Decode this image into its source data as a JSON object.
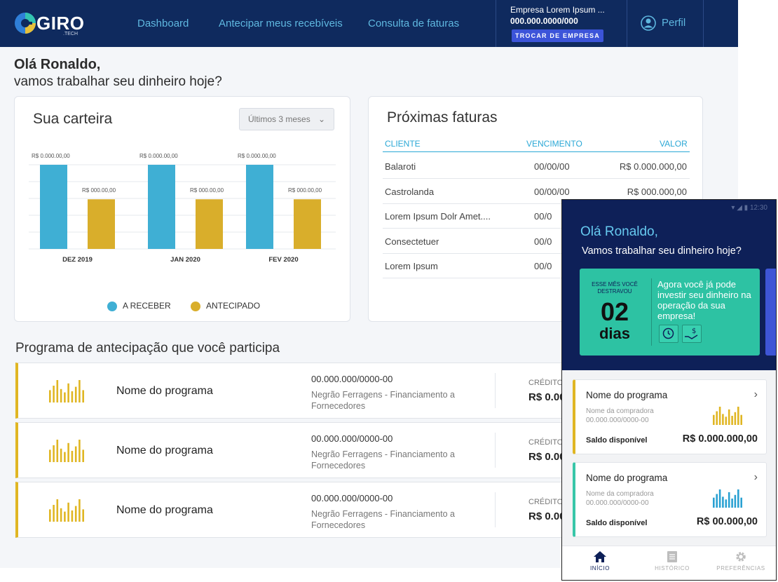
{
  "brand": {
    "name": "GIRO",
    "sub": ".TECH"
  },
  "nav": [
    "Dashboard",
    "Antecipar meus recebíveis",
    "Consulta de faturas"
  ],
  "company": {
    "name": "Empresa Lorem Ipsum ...",
    "cnpj": "000.000.0000/000",
    "switch_label": "TROCAR DE EMPRESA"
  },
  "profile_label": "Perfil",
  "greeting": {
    "line1": "Olá Ronaldo,",
    "line2": "vamos trabalhar seu dinheiro hoje?"
  },
  "wallet": {
    "title": "Sua carteira",
    "period": "Últimos 3 meses",
    "legend": [
      "A RECEBER",
      "ANTECIPADO"
    ]
  },
  "chart_data": {
    "type": "bar",
    "categories": [
      "DEZ 2019",
      "JAN 2020",
      "FEV 2020"
    ],
    "series": [
      {
        "name": "A RECEBER",
        "values": [
          100,
          100,
          100
        ],
        "labels": [
          "R$ 0.000.00,00",
          "R$ 0.000.00,00",
          "R$ 0.000.00,00"
        ],
        "color": "#3fafd4"
      },
      {
        "name": "ANTECIPADO",
        "values": [
          59,
          59,
          59
        ],
        "labels": [
          "R$ 000.00,00",
          "R$ 000.00,00",
          "R$ 000.00,00"
        ],
        "color": "#d9ae2b"
      }
    ],
    "ylim": [
      0,
      100
    ],
    "grid": true
  },
  "invoices": {
    "title": "Próximas faturas",
    "headers": [
      "CLIENTE",
      "VENCIMENTO",
      "VALOR"
    ],
    "rows": [
      [
        "Balaroti",
        "00/00/00",
        "R$ 0.000.000,00"
      ],
      [
        "Castrolanda",
        "00/00/00",
        "R$ 000.000,00"
      ],
      [
        "Lorem Ipsum Dolr Amet....",
        "00/0",
        ""
      ],
      [
        "Consectetuer",
        "00/0",
        ""
      ],
      [
        "Lorem Ipsum",
        "00/0",
        ""
      ]
    ]
  },
  "programs": {
    "title": "Programa de antecipação que você participa",
    "items": [
      {
        "name": "Nome do programa",
        "cnpj": "00.000.000/0000-00",
        "desc": "Negrão Ferragens - Financiamento a Fornecedores",
        "credit_label": "CRÉDITO",
        "credit_value": "R$ 0.00"
      },
      {
        "name": "Nome do programa",
        "cnpj": "00.000.000/0000-00",
        "desc": "Negrão Ferragens - Financiamento a Fornecedores",
        "credit_label": "CRÉDITO",
        "credit_value": "R$ 0.00"
      },
      {
        "name": "Nome do programa",
        "cnpj": "00.000.000/0000-00",
        "desc": "Negrão Ferragens - Financiamento a Fornecedores",
        "credit_label": "CRÉDITO",
        "credit_value": "R$ 0.00"
      }
    ]
  },
  "mobile": {
    "time": "12:30",
    "greet1": "Olá Ronaldo,",
    "greet2": "Vamos trabalhar seu dinheiro hoje?",
    "promo": {
      "label": "ESSE MÊS VOCÊ DESTRAVOU",
      "number": "02",
      "unit": "dias",
      "text": "Agora você já pode investir seu dinheiro na operação da sua empresa!"
    },
    "cards": [
      {
        "name": "Nome do programa",
        "buyer": "Nome da compradora",
        "cnpj": "00.000.000/0000-00",
        "saldo_label": "Saldo disponível",
        "saldo": "R$ 0.000.000,00",
        "accent": "#e0b623"
      },
      {
        "name": "Nome do programa",
        "buyer": "Nome da compradora",
        "cnpj": "00.000.000/0000-00",
        "saldo_label": "Saldo disponível",
        "saldo": "R$ 00.000,00",
        "accent": "#38c6a8"
      }
    ],
    "tabs": [
      "INÍCIO",
      "HISTÓRICO",
      "PREFERÊNCIAS"
    ]
  }
}
